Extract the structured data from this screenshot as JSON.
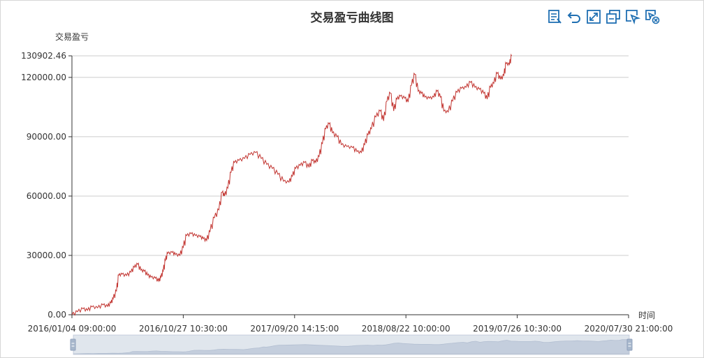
{
  "chart_data": {
    "type": "line",
    "title": "交易盈亏曲线图",
    "ylabel": "交易盈亏",
    "xlabel": "时间",
    "ylim": [
      0,
      130902.46
    ],
    "y_tick_labels": [
      "0.00",
      "30000.00",
      "60000.00",
      "90000.00",
      "120000.00",
      "130902.46"
    ],
    "x_tick_labels": [
      "2016/01/04 09:00:00",
      "2016/10/27 10:30:00",
      "2017/09/20 14:15:00",
      "2018/08/22 10:00:00",
      "2019/07/26 10:30:00",
      "2020/07/30 21:00:00"
    ],
    "grid": true,
    "line_color": "#c23531",
    "series": [
      {
        "points": [
          [
            0.0,
            0
          ],
          [
            0.01,
            1500
          ],
          [
            0.02,
            3000
          ],
          [
            0.028,
            2200
          ],
          [
            0.036,
            4000
          ],
          [
            0.046,
            3500
          ],
          [
            0.056,
            5000
          ],
          [
            0.064,
            4200
          ],
          [
            0.07,
            6000
          ],
          [
            0.074,
            8000
          ],
          [
            0.08,
            12000
          ],
          [
            0.084,
            20000
          ],
          [
            0.09,
            20500
          ],
          [
            0.098,
            19800
          ],
          [
            0.106,
            21500
          ],
          [
            0.112,
            24000
          ],
          [
            0.118,
            25500
          ],
          [
            0.124,
            22500
          ],
          [
            0.13,
            22000
          ],
          [
            0.136,
            20000
          ],
          [
            0.142,
            19000
          ],
          [
            0.15,
            18500
          ],
          [
            0.156,
            17000
          ],
          [
            0.16,
            19000
          ],
          [
            0.164,
            22000
          ],
          [
            0.168,
            27500
          ],
          [
            0.172,
            31000
          ],
          [
            0.18,
            31500
          ],
          [
            0.186,
            30500
          ],
          [
            0.194,
            30000
          ],
          [
            0.2,
            34000
          ],
          [
            0.206,
            40000
          ],
          [
            0.214,
            41000
          ],
          [
            0.222,
            40000
          ],
          [
            0.23,
            39500
          ],
          [
            0.236,
            38500
          ],
          [
            0.242,
            37500
          ],
          [
            0.248,
            42000
          ],
          [
            0.256,
            49000
          ],
          [
            0.264,
            53000
          ],
          [
            0.27,
            62000
          ],
          [
            0.274,
            60000
          ],
          [
            0.28,
            64000
          ],
          [
            0.286,
            72000
          ],
          [
            0.292,
            77000
          ],
          [
            0.3,
            78000
          ],
          [
            0.31,
            79000
          ],
          [
            0.32,
            81000
          ],
          [
            0.33,
            82000
          ],
          [
            0.34,
            79000
          ],
          [
            0.35,
            76000
          ],
          [
            0.36,
            74000
          ],
          [
            0.37,
            71000
          ],
          [
            0.38,
            67500
          ],
          [
            0.39,
            67000
          ],
          [
            0.396,
            70000
          ],
          [
            0.402,
            74000
          ],
          [
            0.41,
            75500
          ],
          [
            0.418,
            77000
          ],
          [
            0.426,
            74500
          ],
          [
            0.432,
            78000
          ],
          [
            0.438,
            77000
          ],
          [
            0.444,
            80000
          ],
          [
            0.45,
            86500
          ],
          [
            0.456,
            94000
          ],
          [
            0.462,
            96500
          ],
          [
            0.468,
            92000
          ],
          [
            0.476,
            90000
          ],
          [
            0.484,
            86000
          ],
          [
            0.494,
            85000
          ],
          [
            0.504,
            84500
          ],
          [
            0.512,
            82500
          ],
          [
            0.52,
            82000
          ],
          [
            0.526,
            86000
          ],
          [
            0.532,
            91000
          ],
          [
            0.538,
            94000
          ],
          [
            0.546,
            100000
          ],
          [
            0.554,
            103000
          ],
          [
            0.56,
            98000
          ],
          [
            0.566,
            108000
          ],
          [
            0.572,
            112000
          ],
          [
            0.578,
            103000
          ],
          [
            0.584,
            109000
          ],
          [
            0.59,
            110500
          ],
          [
            0.598,
            109500
          ],
          [
            0.604,
            107500
          ],
          [
            0.61,
            116000
          ],
          [
            0.616,
            121500
          ],
          [
            0.622,
            113000
          ],
          [
            0.628,
            112000
          ],
          [
            0.634,
            110000
          ],
          [
            0.642,
            109500
          ],
          [
            0.65,
            110000
          ],
          [
            0.656,
            113000
          ],
          [
            0.662,
            110000
          ],
          [
            0.668,
            103000
          ],
          [
            0.676,
            102500
          ],
          [
            0.684,
            108000
          ],
          [
            0.692,
            112500
          ],
          [
            0.7,
            114500
          ],
          [
            0.708,
            115000
          ],
          [
            0.716,
            117500
          ],
          [
            0.724,
            115000
          ],
          [
            0.732,
            114000
          ],
          [
            0.74,
            112000
          ],
          [
            0.746,
            109000
          ],
          [
            0.752,
            115000
          ],
          [
            0.758,
            117000
          ],
          [
            0.764,
            122000
          ],
          [
            0.77,
            119000
          ],
          [
            0.776,
            121000
          ],
          [
            0.78,
            127000
          ],
          [
            0.786,
            126500
          ],
          [
            0.79,
            130902.46
          ]
        ]
      }
    ]
  }
}
